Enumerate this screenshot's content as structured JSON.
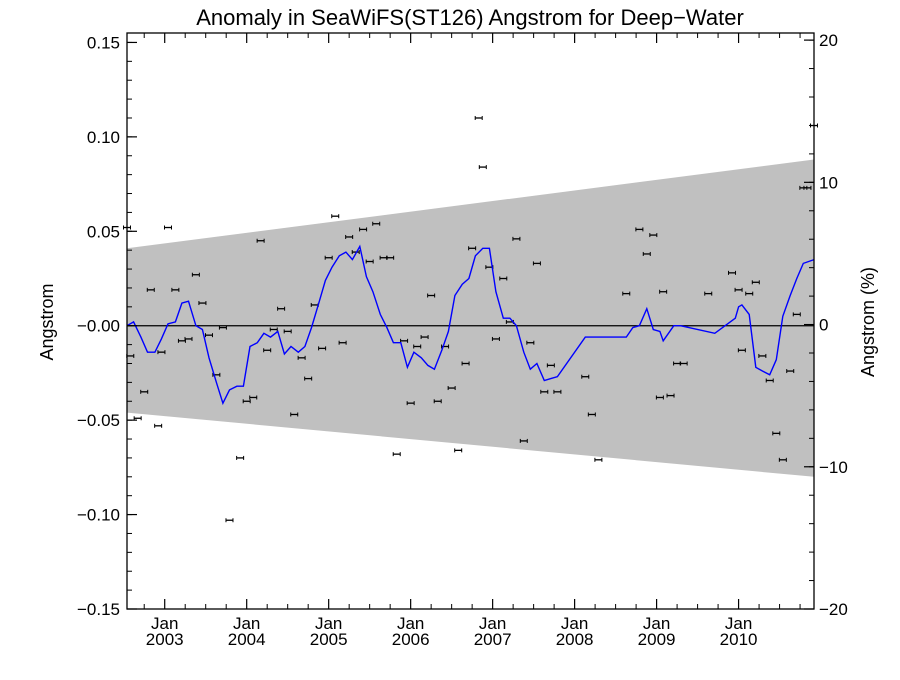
{
  "chart_data": {
    "type": "scatter",
    "title": "Anomaly in SeaWiFS(ST126) Angstrom for Deep−Water",
    "ylabel": "Angstrom",
    "ylabel_right": "Angstrom (%)",
    "ylim": [
      -0.15,
      0.155
    ],
    "ylim_right": [
      -20,
      20.5
    ],
    "yticks": [
      {
        "value": 0.15,
        "label": "0.15"
      },
      {
        "value": 0.1,
        "label": "0.10"
      },
      {
        "value": 0.05,
        "label": "0.05"
      },
      {
        "value": 0.0,
        "label": "−0.00"
      },
      {
        "value": -0.05,
        "label": "−0.05"
      },
      {
        "value": -0.1,
        "label": "−0.10"
      },
      {
        "value": -0.15,
        "label": "−0.15"
      }
    ],
    "yticks_right": [
      {
        "value": 20,
        "label": "20"
      },
      {
        "value": 10,
        "label": "10"
      },
      {
        "value": 0,
        "label": "0"
      },
      {
        "value": -10,
        "label": "−10"
      },
      {
        "value": -20,
        "label": "−20"
      }
    ],
    "xlim": [
      2002.54,
      2010.92
    ],
    "xticks": [
      {
        "value": 2003.0,
        "month": "Jan",
        "year": "2003"
      },
      {
        "value": 2004.0,
        "month": "Jan",
        "year": "2004"
      },
      {
        "value": 2005.0,
        "month": "Jan",
        "year": "2005"
      },
      {
        "value": 2006.0,
        "month": "Jan",
        "year": "2006"
      },
      {
        "value": 2007.0,
        "month": "Jan",
        "year": "2007"
      },
      {
        "value": 2008.0,
        "month": "Jan",
        "year": "2008"
      },
      {
        "value": 2009.0,
        "month": "Jan",
        "year": "2009"
      },
      {
        "value": 2010.0,
        "month": "Jan",
        "year": "2010"
      }
    ],
    "grid": false,
    "band": {
      "x": [
        2002.54,
        2010.92
      ],
      "upper": [
        0.041,
        0.088
      ],
      "lower": [
        -0.046,
        -0.08
      ],
      "color": "#c0c0c0"
    },
    "zero_line": 0.0,
    "points": [
      [
        2002.54,
        0.052
      ],
      [
        2002.58,
        -0.016
      ],
      [
        2002.67,
        -0.049
      ],
      [
        2002.75,
        -0.035
      ],
      [
        2002.83,
        0.019
      ],
      [
        2002.92,
        -0.053
      ],
      [
        2002.96,
        -0.014
      ],
      [
        2003.04,
        0.052
      ],
      [
        2003.13,
        0.019
      ],
      [
        2003.21,
        -0.008
      ],
      [
        2003.29,
        -0.007
      ],
      [
        2003.38,
        0.027
      ],
      [
        2003.46,
        0.012
      ],
      [
        2003.54,
        -0.005
      ],
      [
        2003.63,
        -0.026
      ],
      [
        2003.71,
        -0.001
      ],
      [
        2003.79,
        -0.103
      ],
      [
        2003.92,
        -0.07
      ],
      [
        2004.0,
        -0.04
      ],
      [
        2004.08,
        -0.038
      ],
      [
        2004.17,
        0.045
      ],
      [
        2004.25,
        -0.013
      ],
      [
        2004.33,
        -0.002
      ],
      [
        2004.42,
        0.009
      ],
      [
        2004.5,
        -0.003
      ],
      [
        2004.58,
        -0.047
      ],
      [
        2004.67,
        -0.017
      ],
      [
        2004.75,
        -0.028
      ],
      [
        2004.83,
        0.011
      ],
      [
        2004.92,
        -0.012
      ],
      [
        2005.0,
        0.036
      ],
      [
        2005.08,
        0.058
      ],
      [
        2005.17,
        -0.009
      ],
      [
        2005.25,
        0.047
      ],
      [
        2005.33,
        0.039
      ],
      [
        2005.42,
        0.051
      ],
      [
        2005.5,
        0.034
      ],
      [
        2005.58,
        0.054
      ],
      [
        2005.67,
        0.036
      ],
      [
        2005.75,
        0.036
      ],
      [
        2005.83,
        -0.068
      ],
      [
        2005.92,
        -0.008
      ],
      [
        2006.0,
        -0.041
      ],
      [
        2006.08,
        -0.011
      ],
      [
        2006.17,
        -0.006
      ],
      [
        2006.25,
        0.016
      ],
      [
        2006.33,
        -0.04
      ],
      [
        2006.42,
        -0.011
      ],
      [
        2006.5,
        -0.033
      ],
      [
        2006.58,
        -0.066
      ],
      [
        2006.67,
        -0.02
      ],
      [
        2006.75,
        0.041
      ],
      [
        2006.83,
        0.11
      ],
      [
        2006.88,
        0.084
      ],
      [
        2006.96,
        0.031
      ],
      [
        2007.04,
        -0.007
      ],
      [
        2007.13,
        0.025
      ],
      [
        2007.21,
        0.002
      ],
      [
        2007.29,
        0.046
      ],
      [
        2007.38,
        -0.061
      ],
      [
        2007.46,
        -0.009
      ],
      [
        2007.54,
        0.033
      ],
      [
        2007.63,
        -0.035
      ],
      [
        2007.71,
        -0.021
      ],
      [
        2007.79,
        -0.035
      ],
      [
        2008.13,
        -0.027
      ],
      [
        2008.21,
        -0.047
      ],
      [
        2008.29,
        -0.071
      ],
      [
        2008.63,
        0.017
      ],
      [
        2008.79,
        0.051
      ],
      [
        2008.88,
        0.038
      ],
      [
        2008.96,
        0.048
      ],
      [
        2009.04,
        -0.038
      ],
      [
        2009.08,
        0.018
      ],
      [
        2009.17,
        -0.037
      ],
      [
        2009.25,
        -0.02
      ],
      [
        2009.33,
        -0.02
      ],
      [
        2009.63,
        0.017
      ],
      [
        2009.92,
        0.028
      ],
      [
        2010.0,
        0.019
      ],
      [
        2010.04,
        -0.013
      ],
      [
        2010.13,
        0.017
      ],
      [
        2010.21,
        0.023
      ],
      [
        2010.29,
        -0.016
      ],
      [
        2010.38,
        -0.029
      ],
      [
        2010.46,
        -0.057
      ],
      [
        2010.54,
        -0.071
      ],
      [
        2010.63,
        -0.024
      ],
      [
        2010.71,
        0.006
      ],
      [
        2010.79,
        0.073
      ],
      [
        2010.84,
        0.073
      ],
      [
        2010.92,
        0.106
      ]
    ],
    "smooth": {
      "color": "#0000ff",
      "x": [
        2002.54,
        2002.62,
        2002.71,
        2002.79,
        2002.88,
        2002.96,
        2003.04,
        2003.13,
        2003.21,
        2003.29,
        2003.38,
        2003.46,
        2003.54,
        2003.63,
        2003.71,
        2003.79,
        2003.88,
        2003.96,
        2004.04,
        2004.13,
        2004.21,
        2004.29,
        2004.38,
        2004.46,
        2004.54,
        2004.63,
        2004.71,
        2004.79,
        2004.88,
        2004.96,
        2005.04,
        2005.13,
        2005.21,
        2005.29,
        2005.38,
        2005.46,
        2005.54,
        2005.63,
        2005.71,
        2005.79,
        2005.88,
        2005.96,
        2006.04,
        2006.13,
        2006.21,
        2006.29,
        2006.38,
        2006.46,
        2006.54,
        2006.63,
        2006.71,
        2006.79,
        2006.88,
        2006.96,
        2007.04,
        2007.13,
        2007.21,
        2007.29,
        2007.38,
        2007.46,
        2007.54,
        2007.63,
        2007.71,
        2007.79,
        2008.13,
        2008.38,
        2008.63,
        2008.71,
        2008.79,
        2008.88,
        2008.96,
        2009.04,
        2009.08,
        2009.21,
        2009.29,
        2009.71,
        2009.96,
        2010.0,
        2010.04,
        2010.13,
        2010.21,
        2010.29,
        2010.38,
        2010.46,
        2010.54,
        2010.63,
        2010.71,
        2010.79,
        2010.92
      ],
      "y": [
        0.0,
        0.002,
        -0.006,
        -0.014,
        -0.014,
        -0.007,
        0.001,
        0.002,
        0.012,
        0.013,
        0.0,
        -0.002,
        -0.017,
        -0.03,
        -0.041,
        -0.034,
        -0.032,
        -0.032,
        -0.011,
        -0.009,
        -0.004,
        -0.006,
        -0.003,
        -0.015,
        -0.011,
        -0.014,
        -0.011,
        -0.001,
        0.012,
        0.024,
        0.031,
        0.037,
        0.039,
        0.035,
        0.042,
        0.026,
        0.018,
        0.006,
        -0.001,
        -0.009,
        -0.009,
        -0.022,
        -0.014,
        -0.017,
        -0.021,
        -0.023,
        -0.013,
        -0.003,
        0.016,
        0.022,
        0.025,
        0.037,
        0.041,
        0.041,
        0.018,
        0.004,
        0.004,
        0.0,
        -0.014,
        -0.023,
        -0.02,
        -0.029,
        -0.028,
        -0.027,
        -0.006,
        -0.006,
        -0.006,
        -0.001,
        0.0,
        0.009,
        -0.002,
        -0.003,
        -0.008,
        0.0,
        0.0,
        -0.004,
        0.004,
        0.01,
        0.011,
        0.006,
        -0.022,
        -0.024,
        -0.026,
        -0.018,
        0.005,
        0.016,
        0.025,
        0.033,
        0.035
      ]
    }
  }
}
